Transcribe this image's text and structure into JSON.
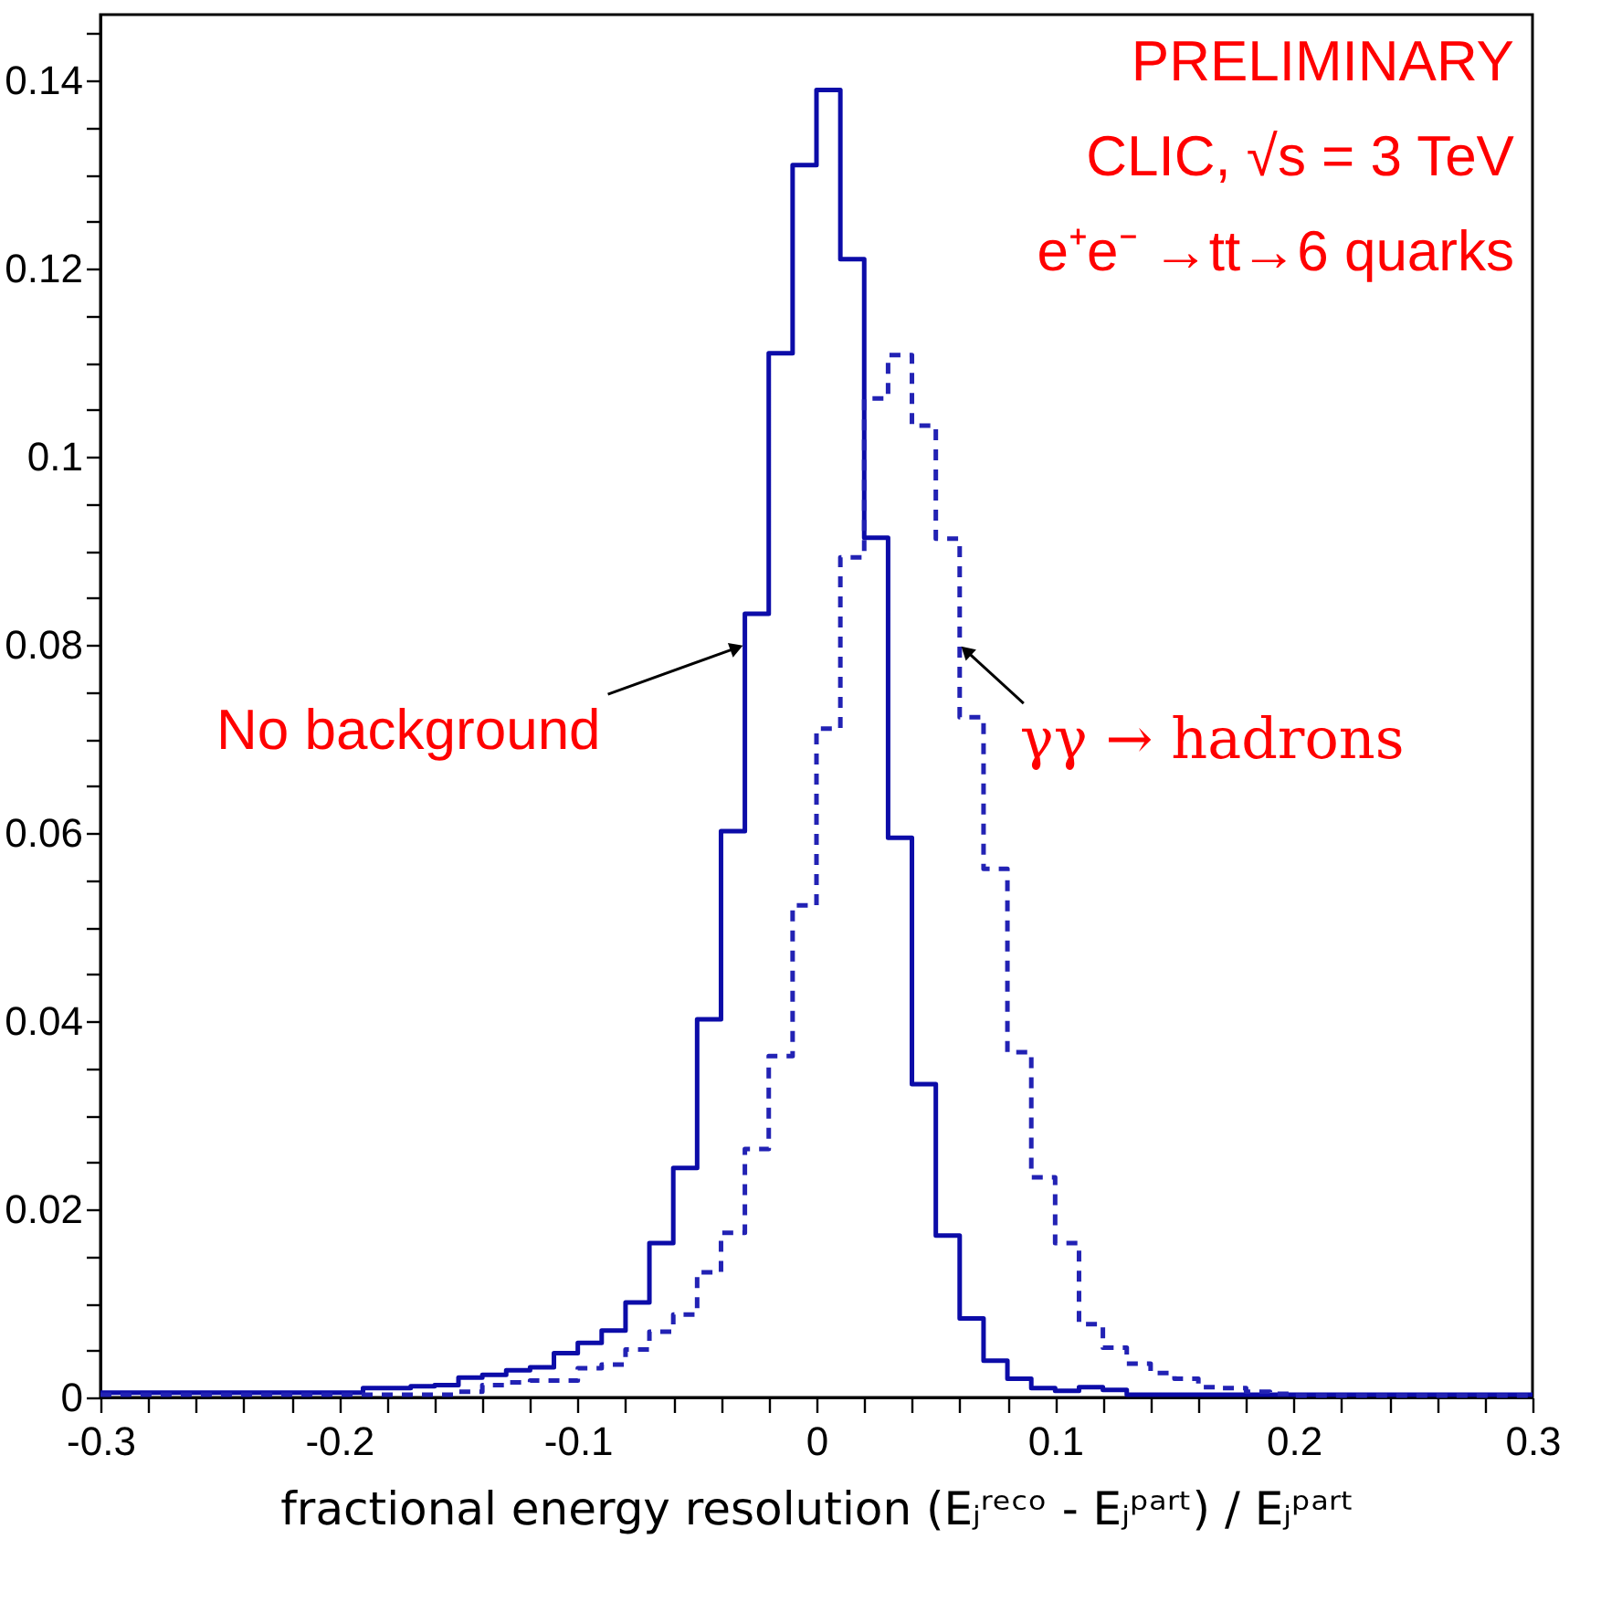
{
  "chart_data": {
    "type": "histogram",
    "xlabel": "fractional energy resolution (Eⱼʳᵉᶜᵒ - Eⱼᵖᵃʳᵗ) / Eⱼᵖᵃʳᵗ",
    "bins": [
      -0.3,
      -0.29,
      -0.28,
      -0.27,
      -0.26,
      -0.25,
      -0.24,
      -0.23,
      -0.22,
      -0.21,
      -0.2,
      -0.19,
      -0.18,
      -0.17,
      -0.16,
      -0.15,
      -0.14,
      -0.13,
      -0.12,
      -0.11,
      -0.1,
      -0.09,
      -0.08,
      -0.07,
      -0.06,
      -0.05,
      -0.04,
      -0.03,
      -0.02,
      -0.01,
      0,
      0.01,
      0.02,
      0.03,
      0.04,
      0.05,
      0.06,
      0.07,
      0.08,
      0.09,
      0.1,
      0.11,
      0.12,
      0.13,
      0.14,
      0.15,
      0.16,
      0.17,
      0.18,
      0.19,
      0.2,
      0.21,
      0.22,
      0.23,
      0.24,
      0.25,
      0.26,
      0.27,
      0.28,
      0.29,
      0.3
    ],
    "series": [
      {
        "color": "#0c0ca8",
        "line_style": "solid",
        "values": [
          0.0005,
          0.0005,
          0.0005,
          0.0005,
          0.0005,
          0.0005,
          0.0005,
          0.0005,
          0.0005,
          0.0005,
          0.0005,
          0.001,
          0.001,
          0.0012,
          0.0013,
          0.0021,
          0.0024,
          0.0029,
          0.0032,
          0.0047,
          0.0058,
          0.0071,
          0.0101,
          0.0164,
          0.0244,
          0.0402,
          0.0602,
          0.0833,
          0.111,
          0.131,
          0.139,
          0.121,
          0.0914,
          0.0595,
          0.0333,
          0.0172,
          0.0084,
          0.0039,
          0.002,
          0.001,
          0.0007,
          0.0011,
          0.0008,
          0.0003,
          0.0003,
          0.0003,
          0.0003,
          0.0003,
          0.0003,
          0.0003,
          0.0003,
          0.0003,
          0.0003,
          0.0003,
          0.0003,
          0.0003,
          0.0003,
          0.0003,
          0.0003,
          0.0003
        ]
      },
      {
        "color": "#2222b4",
        "line_style": "dashed",
        "values": [
          0.0003,
          0.0003,
          0.0003,
          0.0003,
          0.0003,
          0.0003,
          0.0003,
          0.0003,
          0.0003,
          0.0003,
          0.0003,
          0.0003,
          0.0003,
          0.0003,
          0.0003,
          0.0006,
          0.0013,
          0.0016,
          0.0018,
          0.0018,
          0.0031,
          0.0035,
          0.0051,
          0.007,
          0.0088,
          0.0133,
          0.0175,
          0.0264,
          0.0363,
          0.0523,
          0.0711,
          0.0893,
          0.1062,
          0.1108,
          0.1033,
          0.0913,
          0.0723,
          0.0562,
          0.0367,
          0.0234,
          0.0164,
          0.0078,
          0.0053,
          0.0036,
          0.0026,
          0.002,
          0.0011,
          0.001,
          0.0006,
          0.0004,
          0.0002,
          0.0002,
          0.0002,
          0.0002,
          0.0002,
          0.0002,
          0.0002,
          0.0002,
          0.0002,
          0.0002
        ]
      }
    ],
    "xlim": [
      -0.3,
      0.3
    ],
    "xticks": [
      -0.3,
      {
        "value": -0.28,
        "label": null
      },
      {
        "value": -0.26,
        "label": null
      },
      {
        "value": -0.24,
        "label": null
      },
      {
        "value": -0.22,
        "label": null
      },
      -0.2,
      {
        "value": -0.18,
        "label": null
      },
      {
        "value": -0.16,
        "label": null
      },
      {
        "value": -0.14,
        "label": null
      },
      {
        "value": -0.12,
        "label": null
      },
      -0.1,
      {
        "value": -0.08,
        "label": null
      },
      {
        "value": -0.06,
        "label": null
      },
      {
        "value": -0.04,
        "label": null
      },
      {
        "value": -0.02,
        "label": null
      },
      0,
      {
        "value": 0.02,
        "label": null
      },
      {
        "value": 0.04,
        "label": null
      },
      {
        "value": 0.06,
        "label": null
      },
      {
        "value": 0.08,
        "label": null
      },
      0.1,
      {
        "value": 0.12,
        "label": null
      },
      {
        "value": 0.14,
        "label": null
      },
      {
        "value": 0.16,
        "label": null
      },
      {
        "value": 0.18,
        "label": null
      },
      0.2,
      {
        "value": 0.22,
        "label": null
      },
      {
        "value": 0.24,
        "label": null
      },
      {
        "value": 0.26,
        "label": null
      },
      {
        "value": 0.28,
        "label": null
      },
      0.3
    ],
    "ylim": [
      0,
      0.147
    ],
    "yticks": [
      0,
      {
        "value": 0.005,
        "label": null
      },
      {
        "value": 0.01,
        "label": null
      },
      {
        "value": 0.015,
        "label": null
      },
      0.02,
      {
        "value": 0.025,
        "label": null
      },
      {
        "value": 0.03,
        "label": null
      },
      {
        "value": 0.035,
        "label": null
      },
      0.04,
      {
        "value": 0.045,
        "label": null
      },
      {
        "value": 0.05,
        "label": null
      },
      {
        "value": 0.055,
        "label": null
      },
      0.06,
      {
        "value": 0.065,
        "label": null
      },
      {
        "value": 0.07,
        "label": null
      },
      {
        "value": 0.075,
        "label": null
      },
      0.08,
      {
        "value": 0.085,
        "label": null
      },
      {
        "value": 0.09,
        "label": null
      },
      {
        "value": 0.095,
        "label": null
      },
      0.1,
      {
        "value": 0.105,
        "label": null
      },
      {
        "value": 0.11,
        "label": null
      },
      {
        "value": 0.115,
        "label": null
      },
      0.12,
      {
        "value": 0.125,
        "label": null
      },
      {
        "value": 0.13,
        "label": null
      },
      {
        "value": 0.135,
        "label": null
      },
      0.14,
      {
        "value": 0.145,
        "label": null
      }
    ],
    "grid": false,
    "annotations": [
      "PRELIMINARY",
      "CLIC, √s = 3 TeV",
      "e⁺e⁻ →tt→6 quarks",
      {
        "text": "No background",
        "x": -0.03,
        "y": 0.08
      },
      {
        "text": "γγ → hadrons",
        "x": 0.06,
        "y": 0.08
      }
    ]
  }
}
